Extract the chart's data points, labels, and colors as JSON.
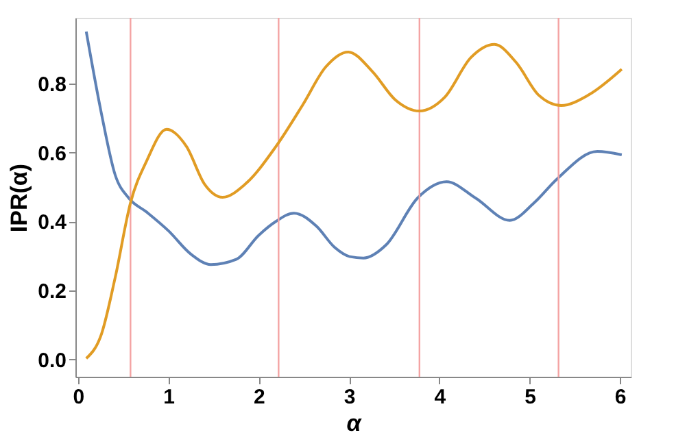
{
  "chart_data": {
    "type": "line",
    "xlabel": "α",
    "ylabel": "IPR(α)",
    "xlim": [
      -0.03,
      6.12
    ],
    "ylim": [
      -0.05,
      0.99
    ],
    "xticks": [
      0,
      1,
      2,
      3,
      4,
      5,
      6
    ],
    "yticks": [
      {
        "value": 0,
        "label": "0.0"
      },
      0.2,
      0.4,
      0.6,
      0.8
    ],
    "grid": false,
    "line_style": "solid",
    "marker": "none",
    "series": [
      {
        "color": "#5e81b5",
        "x": [
          0.09,
          0.26,
          0.41,
          0.56,
          0.76,
          1.0,
          1.25,
          1.47,
          1.75,
          2.0,
          2.19,
          2.39,
          2.64,
          2.84,
          3.01,
          3.16,
          3.41,
          3.76,
          4.08,
          4.4,
          4.78,
          5.05,
          5.3,
          5.75,
          6.02
        ],
        "values": [
          0.95,
          0.71,
          0.535,
          0.468,
          0.427,
          0.373,
          0.305,
          0.275,
          0.29,
          0.36,
          0.4,
          0.424,
          0.386,
          0.325,
          0.298,
          0.294,
          0.332,
          0.468,
          0.515,
          0.468,
          0.403,
          0.454,
          0.522,
          0.603,
          0.593
        ]
      },
      {
        "color": "#e19c24",
        "x": [
          0.09,
          0.26,
          0.41,
          0.58,
          0.76,
          0.98,
          1.2,
          1.4,
          1.6,
          1.85,
          2.19,
          2.49,
          2.74,
          2.99,
          3.26,
          3.51,
          3.78,
          4.06,
          4.35,
          4.61,
          4.85,
          5.1,
          5.35,
          5.65,
          6.02
        ],
        "values": [
          0.003,
          0.075,
          0.237,
          0.454,
          0.576,
          0.667,
          0.617,
          0.508,
          0.47,
          0.508,
          0.617,
          0.739,
          0.847,
          0.891,
          0.834,
          0.753,
          0.72,
          0.76,
          0.875,
          0.913,
          0.861,
          0.766,
          0.736,
          0.766,
          0.841
        ]
      }
    ],
    "ref_lines": [
      {
        "axis": "x",
        "value": 0.58,
        "color": "#f4a3a3"
      },
      {
        "axis": "x",
        "value": 2.22,
        "color": "#f4a3a3"
      },
      {
        "axis": "x",
        "value": 3.78,
        "color": "#f4a3a3"
      },
      {
        "axis": "x",
        "value": 5.32,
        "color": "#f4a3a3"
      }
    ]
  }
}
